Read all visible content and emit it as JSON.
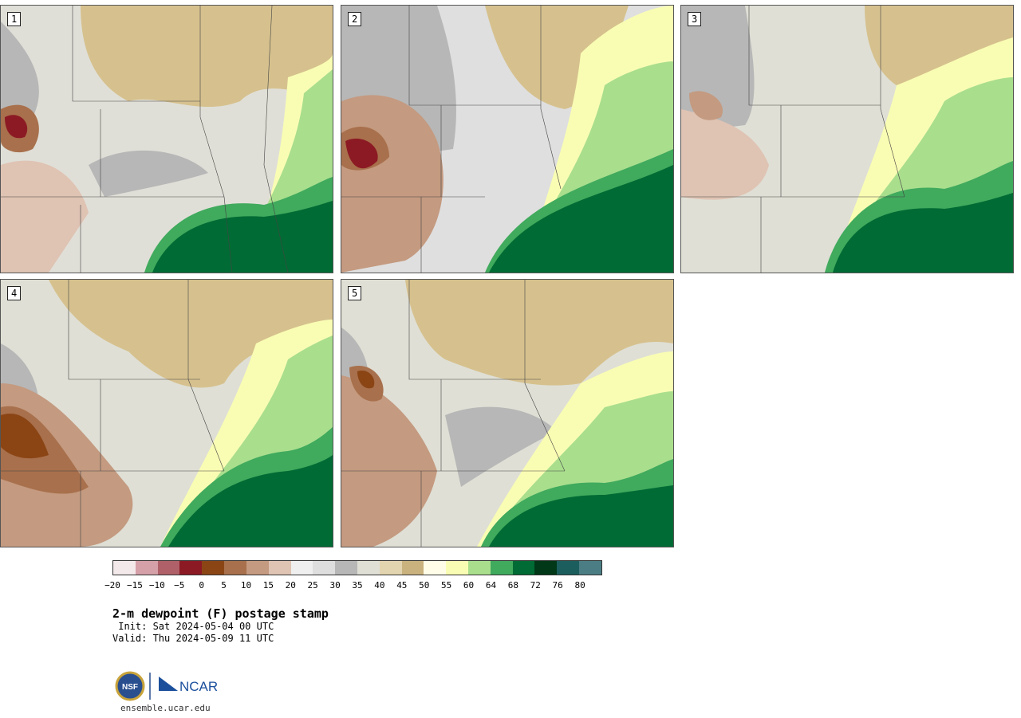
{
  "panels": [
    {
      "label": "1"
    },
    {
      "label": "2"
    },
    {
      "label": "3"
    },
    {
      "label": "4"
    },
    {
      "label": "5"
    }
  ],
  "colorbar": {
    "colors": [
      "#f3e8ea",
      "#d5a0a8",
      "#b06068",
      "#8c1a24",
      "#8b4515",
      "#a8704c",
      "#c49a80",
      "#dfc3b3",
      "#efefef",
      "#dedede",
      "#b7b7b7",
      "#dfdfd5",
      "#e3d4b0",
      "#c9b27e",
      "#fffde8",
      "#f9fdb3",
      "#a9de8d",
      "#40aa5d",
      "#006b34",
      "#003818",
      "#1c5e5e",
      "#4b7e84"
    ],
    "ticks": [
      "−20",
      "−15",
      "−10",
      "−5",
      "0",
      "5",
      "10",
      "15",
      "20",
      "25",
      "30",
      "35",
      "40",
      "45",
      "50",
      "55",
      "60",
      "64",
      "68",
      "72",
      "76",
      "80"
    ]
  },
  "title": "2-m dewpoint (F) postage stamp",
  "init": " Init: Sat 2024-05-04 00 UTC",
  "valid": "Valid: Thu 2024-05-09 11 UTC",
  "logo": {
    "nsf": "NSF",
    "ncar": "NCAR"
  },
  "url": "ensemble.ucar.edu"
}
